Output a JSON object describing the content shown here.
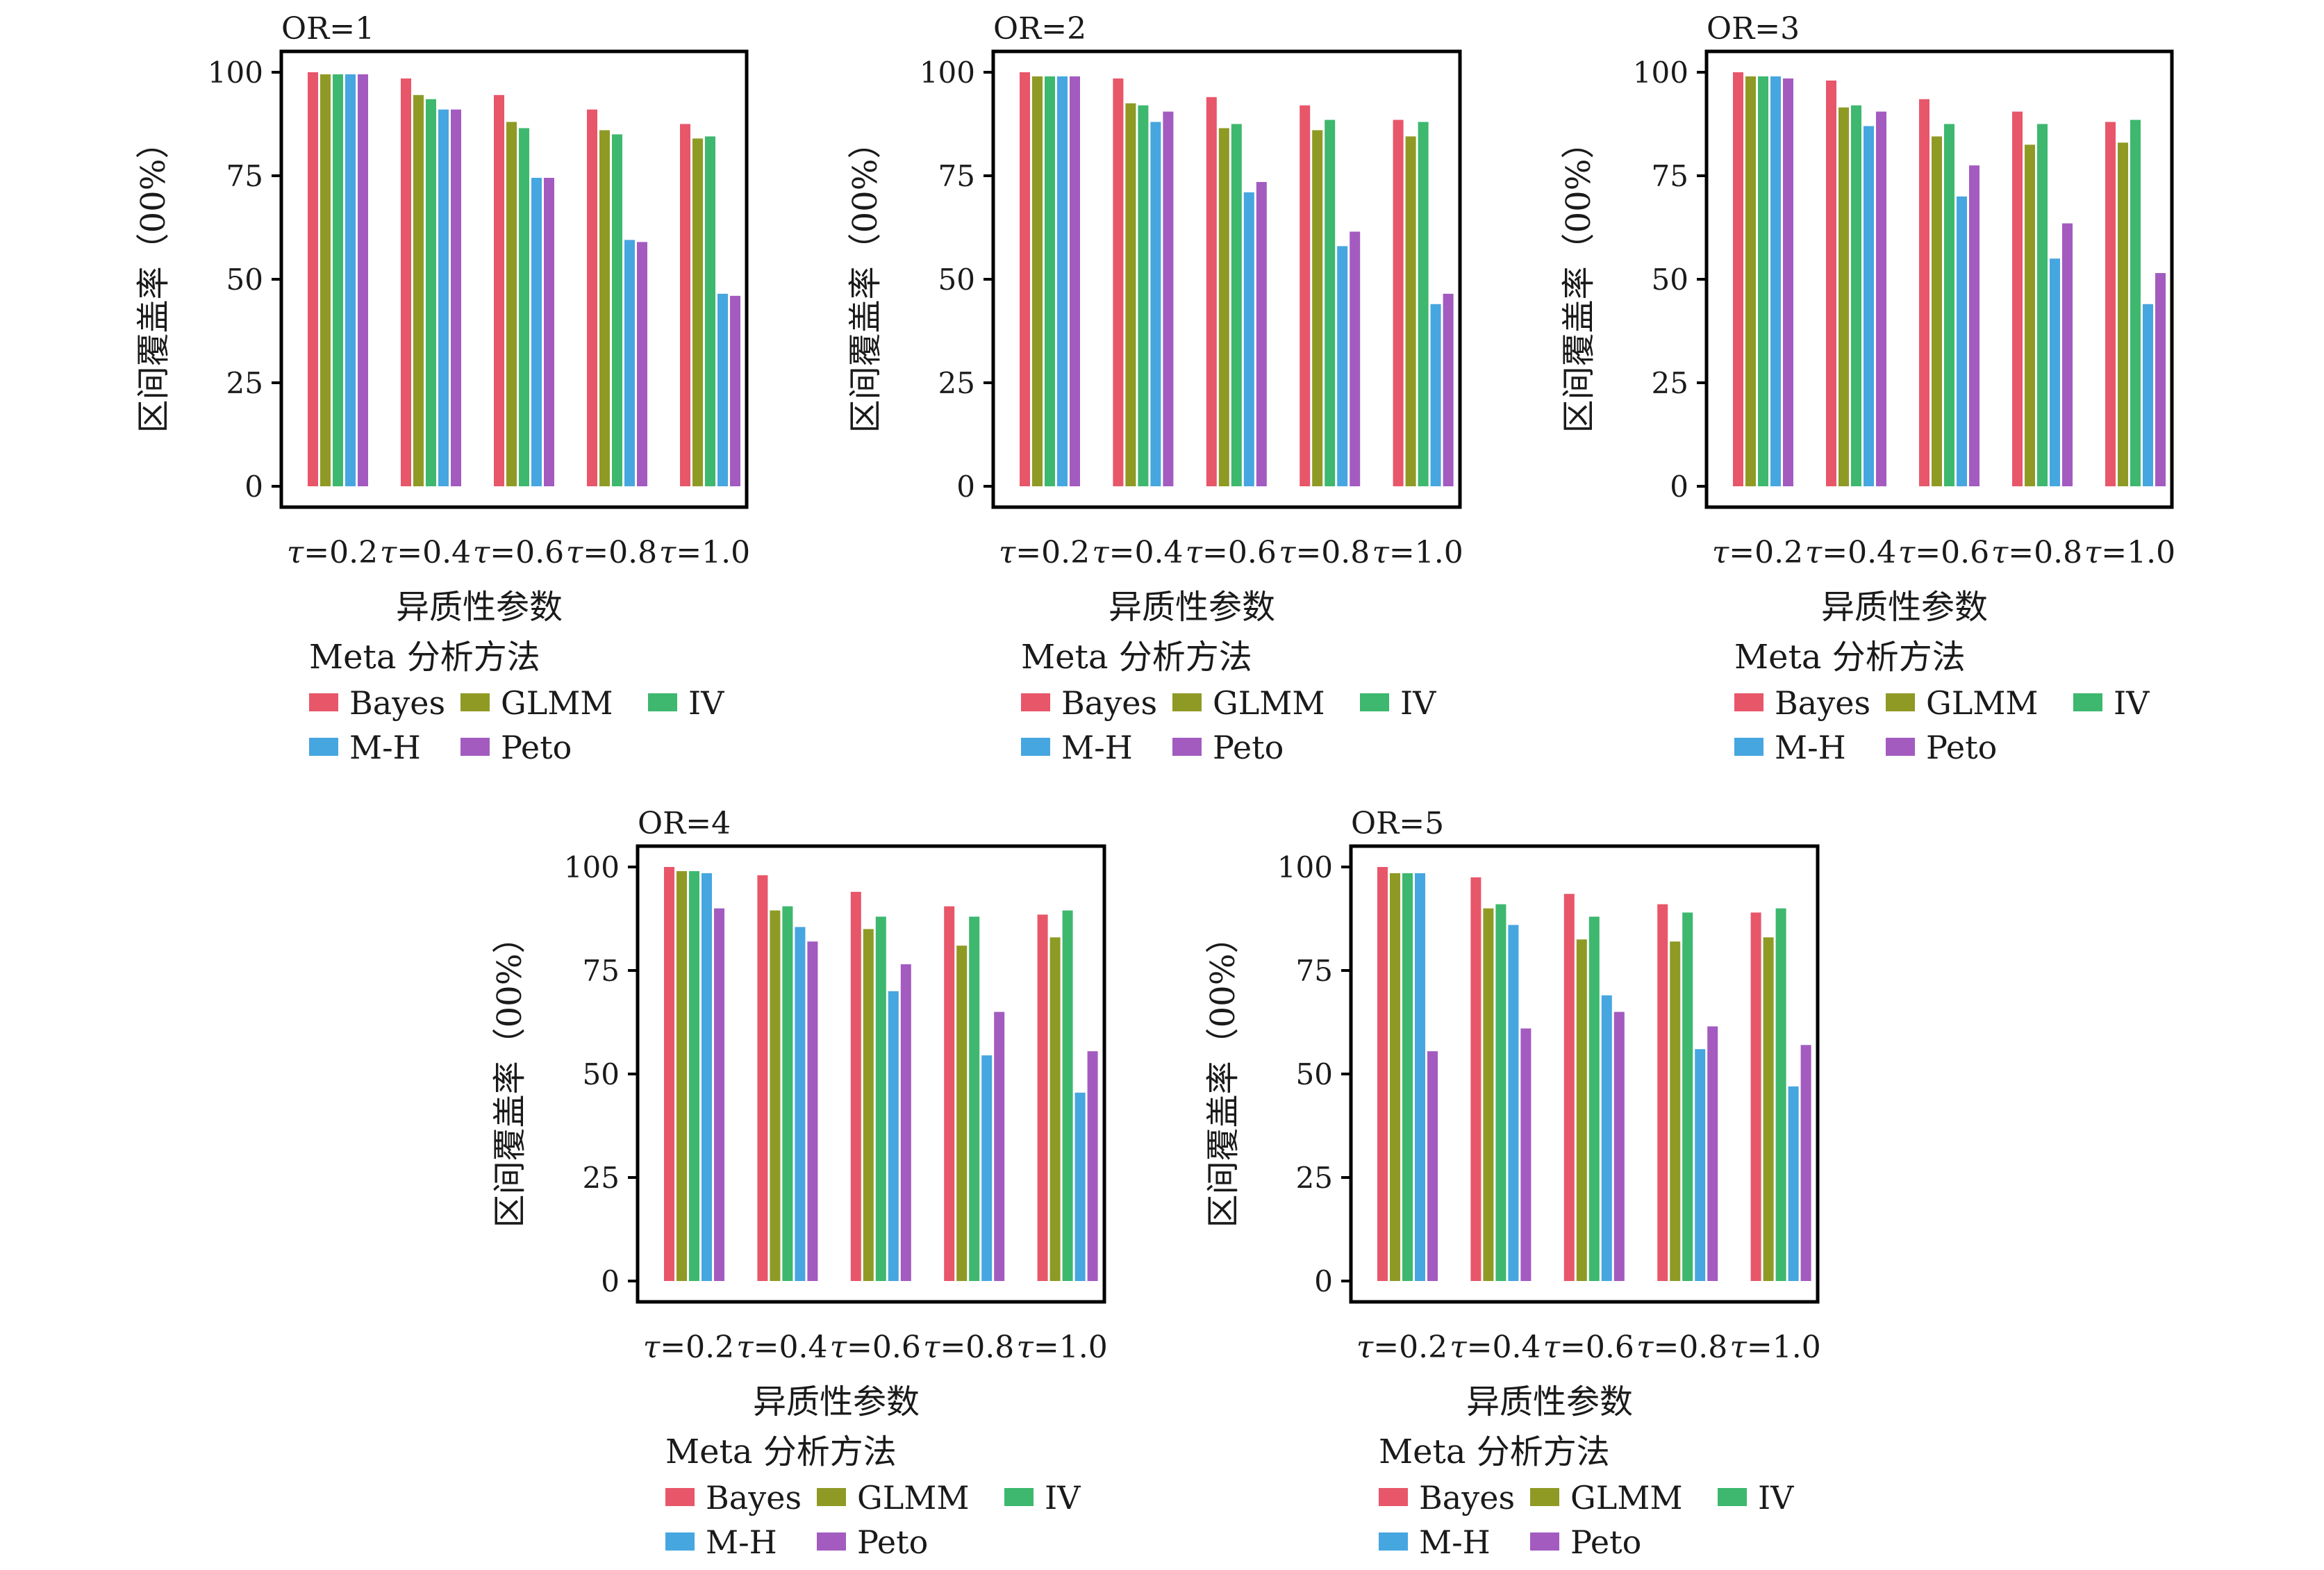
{
  "chart_data": [
    {
      "type": "bar",
      "title": "OR=1",
      "categories": [
        "τ=0.2",
        "τ=0.4",
        "τ=0.6",
        "τ=0.8",
        "τ=1.0"
      ],
      "xlabel": "异质性参数",
      "ylabel": "区间覆盖率（00%）",
      "ylim": [
        0,
        100
      ],
      "yticks": [
        "0",
        "25",
        "50",
        "75",
        "100"
      ],
      "legend_title": "Meta 分析方法",
      "series": [
        {
          "name": "Bayes",
          "color": "#E8566A",
          "values": [
            100,
            98.5,
            94.5,
            91,
            87.5
          ]
        },
        {
          "name": "GLMM",
          "color": "#8F9A25",
          "values": [
            99.5,
            94.5,
            88,
            86,
            84
          ]
        },
        {
          "name": "IV",
          "color": "#3DB86E",
          "values": [
            99.5,
            93.5,
            86.5,
            85,
            84.5
          ]
        },
        {
          "name": "M-H",
          "color": "#46A6E0",
          "values": [
            99.5,
            91,
            74.5,
            59.5,
            46.5
          ]
        },
        {
          "name": "Peto",
          "color": "#A35BC0",
          "values": [
            99.5,
            91,
            74.5,
            59,
            46
          ]
        }
      ]
    },
    {
      "type": "bar",
      "title": "OR=2",
      "categories": [
        "τ=0.2",
        "τ=0.4",
        "τ=0.6",
        "τ=0.8",
        "τ=1.0"
      ],
      "xlabel": "异质性参数",
      "ylabel": "区间覆盖率（00%）",
      "ylim": [
        0,
        100
      ],
      "yticks": [
        "0",
        "25",
        "50",
        "75",
        "100"
      ],
      "legend_title": "Meta 分析方法",
      "series": [
        {
          "name": "Bayes",
          "color": "#E8566A",
          "values": [
            100,
            98.5,
            94,
            92,
            88.5
          ]
        },
        {
          "name": "GLMM",
          "color": "#8F9A25",
          "values": [
            99,
            92.5,
            86.5,
            86,
            84.5
          ]
        },
        {
          "name": "IV",
          "color": "#3DB86E",
          "values": [
            99,
            92,
            87.5,
            88.5,
            88
          ]
        },
        {
          "name": "M-H",
          "color": "#46A6E0",
          "values": [
            99,
            88,
            71,
            58,
            44
          ]
        },
        {
          "name": "Peto",
          "color": "#A35BC0",
          "values": [
            99,
            90.5,
            73.5,
            61.5,
            46.5
          ]
        }
      ]
    },
    {
      "type": "bar",
      "title": "OR=3",
      "categories": [
        "τ=0.2",
        "τ=0.4",
        "τ=0.6",
        "τ=0.8",
        "τ=1.0"
      ],
      "xlabel": "异质性参数",
      "ylabel": "区间覆盖率（00%）",
      "ylim": [
        0,
        100
      ],
      "yticks": [
        "0",
        "25",
        "50",
        "75",
        "100"
      ],
      "legend_title": "Meta 分析方法",
      "series": [
        {
          "name": "Bayes",
          "color": "#E8566A",
          "values": [
            100,
            98,
            93.5,
            90.5,
            88
          ]
        },
        {
          "name": "GLMM",
          "color": "#8F9A25",
          "values": [
            99,
            91.5,
            84.5,
            82.5,
            83
          ]
        },
        {
          "name": "IV",
          "color": "#3DB86E",
          "values": [
            99,
            92,
            87.5,
            87.5,
            88.5
          ]
        },
        {
          "name": "M-H",
          "color": "#46A6E0",
          "values": [
            99,
            87,
            70,
            55,
            44
          ]
        },
        {
          "name": "Peto",
          "color": "#A35BC0",
          "values": [
            98.5,
            90.5,
            77.5,
            63.5,
            51.5
          ]
        }
      ]
    },
    {
      "type": "bar",
      "title": "OR=4",
      "categories": [
        "τ=0.2",
        "τ=0.4",
        "τ=0.6",
        "τ=0.8",
        "τ=1.0"
      ],
      "xlabel": "异质性参数",
      "ylabel": "区间覆盖率（00%）",
      "ylim": [
        0,
        100
      ],
      "yticks": [
        "0",
        "25",
        "50",
        "75",
        "100"
      ],
      "legend_title": "Meta 分析方法",
      "series": [
        {
          "name": "Bayes",
          "color": "#E8566A",
          "values": [
            100,
            98,
            94,
            90.5,
            88.5
          ]
        },
        {
          "name": "GLMM",
          "color": "#8F9A25",
          "values": [
            99,
            89.5,
            85,
            81,
            83
          ]
        },
        {
          "name": "IV",
          "color": "#3DB86E",
          "values": [
            99,
            90.5,
            88,
            88,
            89.5
          ]
        },
        {
          "name": "M-H",
          "color": "#46A6E0",
          "values": [
            98.5,
            85.5,
            70,
            54.5,
            45.5
          ]
        },
        {
          "name": "Peto",
          "color": "#A35BC0",
          "values": [
            90,
            82,
            76.5,
            65,
            55.5
          ]
        }
      ]
    },
    {
      "type": "bar",
      "title": "OR=5",
      "categories": [
        "τ=0.2",
        "τ=0.4",
        "τ=0.6",
        "τ=0.8",
        "τ=1.0"
      ],
      "xlabel": "异质性参数",
      "ylabel": "区间覆盖率（00%）",
      "ylim": [
        0,
        100
      ],
      "yticks": [
        "0",
        "25",
        "50",
        "75",
        "100"
      ],
      "legend_title": "Meta 分析方法",
      "series": [
        {
          "name": "Bayes",
          "color": "#E8566A",
          "values": [
            100,
            97.5,
            93.5,
            91,
            89
          ]
        },
        {
          "name": "GLMM",
          "color": "#8F9A25",
          "values": [
            98.5,
            90,
            82.5,
            82,
            83
          ]
        },
        {
          "name": "IV",
          "color": "#3DB86E",
          "values": [
            98.5,
            91,
            88,
            89,
            90
          ]
        },
        {
          "name": "M-H",
          "color": "#46A6E0",
          "values": [
            98.5,
            86,
            69,
            56,
            47
          ]
        },
        {
          "name": "Peto",
          "color": "#A35BC0",
          "values": [
            55.5,
            61,
            65,
            61.5,
            57
          ]
        }
      ]
    }
  ]
}
